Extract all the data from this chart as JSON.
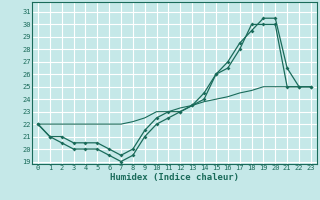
{
  "title": "",
  "xlabel": "Humidex (Indice chaleur)",
  "bg_color": "#c5e8e8",
  "grid_color": "#ffffff",
  "line_color": "#1a6b5a",
  "xlim": [
    -0.5,
    23.5
  ],
  "ylim": [
    18.8,
    31.8
  ],
  "xticks": [
    0,
    1,
    2,
    3,
    4,
    5,
    6,
    7,
    8,
    9,
    10,
    11,
    12,
    13,
    14,
    15,
    16,
    17,
    18,
    19,
    20,
    21,
    22,
    23
  ],
  "yticks": [
    19,
    20,
    21,
    22,
    23,
    24,
    25,
    26,
    27,
    28,
    29,
    30,
    31
  ],
  "line1_x": [
    0,
    1,
    2,
    3,
    4,
    5,
    6,
    7,
    8,
    9,
    10,
    11,
    12,
    13,
    14,
    15,
    16,
    17,
    18,
    19,
    20,
    21,
    22,
    23
  ],
  "line1_y": [
    22,
    21,
    21,
    20.5,
    20.5,
    20.5,
    20,
    19.5,
    20,
    21.5,
    22.5,
    23,
    23,
    23.5,
    24,
    26,
    27,
    28.5,
    29.5,
    30.5,
    30.5,
    26.5,
    25,
    25
  ],
  "line2_x": [
    0,
    1,
    2,
    3,
    4,
    5,
    6,
    7,
    8,
    9,
    10,
    11,
    12,
    13,
    14,
    15,
    16,
    17,
    18,
    19,
    20,
    21,
    22,
    23
  ],
  "line2_y": [
    22,
    21,
    20.5,
    20,
    20,
    20,
    19.5,
    19,
    19.5,
    21,
    22,
    22.5,
    23,
    23.5,
    24.5,
    26,
    26.5,
    28,
    30,
    30,
    30,
    25,
    25,
    25
  ],
  "line3_x": [
    0,
    1,
    2,
    3,
    4,
    5,
    6,
    7,
    8,
    9,
    10,
    11,
    12,
    13,
    14,
    15,
    16,
    17,
    18,
    19,
    20,
    21,
    22,
    23
  ],
  "line3_y": [
    22,
    22,
    22,
    22,
    22,
    22,
    22,
    22,
    22.2,
    22.5,
    23,
    23,
    23.3,
    23.5,
    23.8,
    24,
    24.2,
    24.5,
    24.7,
    25,
    25,
    25,
    25,
    25
  ]
}
